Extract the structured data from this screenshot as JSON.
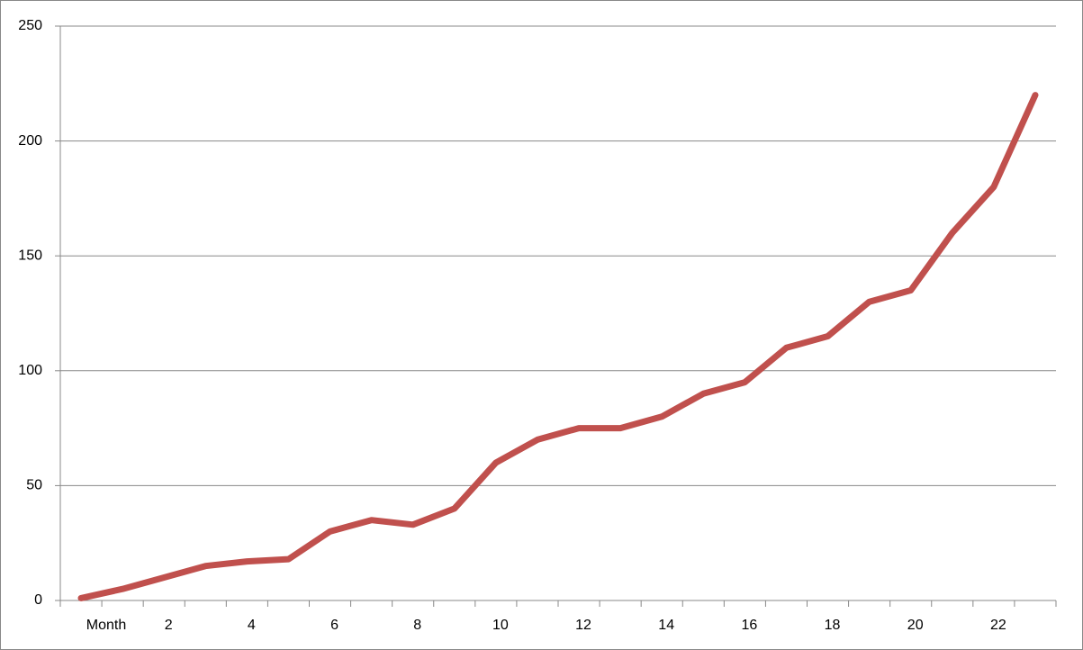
{
  "chart_data": {
    "type": "line",
    "categories": [
      "Month",
      null,
      "2",
      null,
      "4",
      null,
      "6",
      null,
      "8",
      null,
      "10",
      null,
      "12",
      null,
      "14",
      null,
      "16",
      null,
      "18",
      null,
      "20",
      null,
      "22",
      null
    ],
    "series": [
      {
        "name": null,
        "color": "#c0504d",
        "values": [
          1,
          5,
          10,
          15,
          17,
          18,
          30,
          35,
          33,
          40,
          60,
          70,
          75,
          75,
          80,
          90,
          95,
          110,
          115,
          130,
          135,
          160,
          180,
          220
        ]
      }
    ],
    "ylim": [
      0,
      250
    ],
    "yticks": [
      0,
      50,
      100,
      150,
      200,
      250
    ],
    "grid": true
  }
}
